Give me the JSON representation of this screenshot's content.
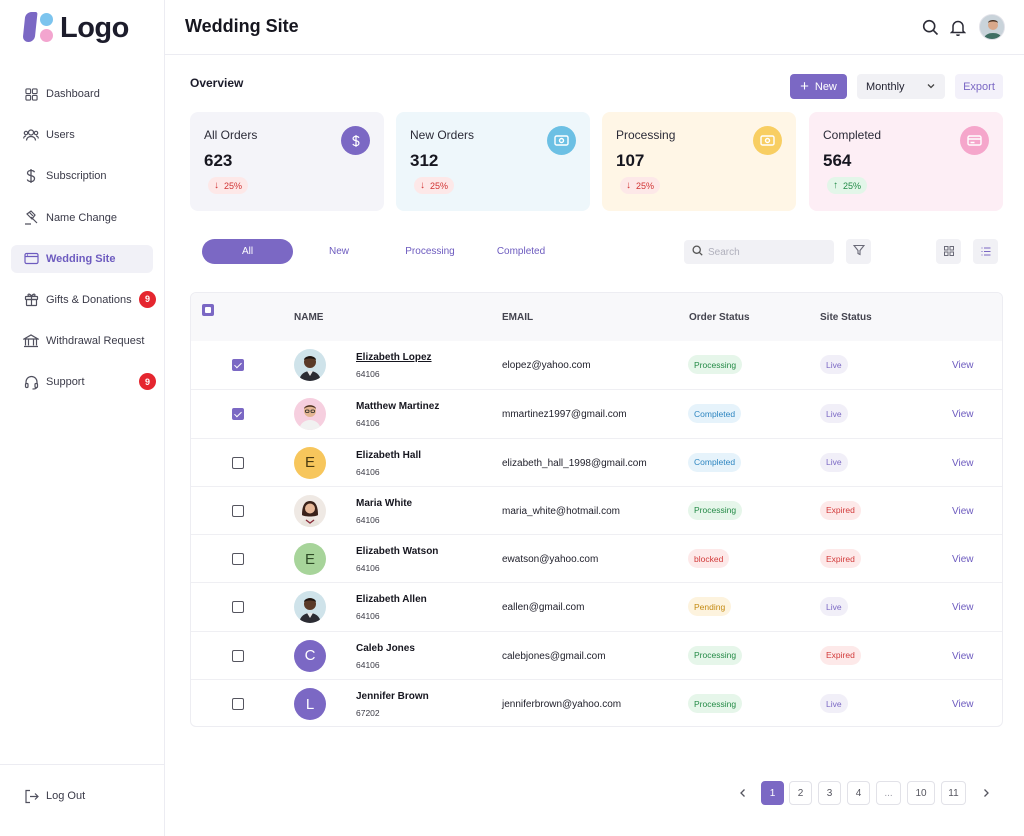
{
  "logo": {
    "text": "Logo"
  },
  "sidebar": {
    "items": [
      {
        "label": "Dashboard",
        "icon": "grid-icon"
      },
      {
        "label": "Users",
        "icon": "users-icon"
      },
      {
        "label": "Subscription",
        "icon": "dollar-icon"
      },
      {
        "label": "Name Change",
        "icon": "gavel-icon"
      },
      {
        "label": "Wedding Site",
        "icon": "browser-icon",
        "active": true
      },
      {
        "label": "Gifts & Donations",
        "icon": "gift-icon",
        "badge": "9"
      },
      {
        "label": "Withdrawal Request",
        "icon": "bank-icon"
      },
      {
        "label": "Support",
        "icon": "headset-icon",
        "badge": "9"
      }
    ],
    "logout_label": "Log Out"
  },
  "header": {
    "title": "Wedding Site"
  },
  "overview": {
    "title": "Overview",
    "new_label": "New",
    "period": "Monthly",
    "export_label": "Export"
  },
  "cards": [
    {
      "title": "All Orders",
      "value": "623",
      "change": "25%",
      "direction": "down",
      "bg": "#f4f4f9",
      "icon_bg": "#7b68c4"
    },
    {
      "title": "New Orders",
      "value": "312",
      "change": "25%",
      "direction": "down",
      "bg": "#eef7fb",
      "icon_bg": "#6cc0e4"
    },
    {
      "title": "Processing",
      "value": "107",
      "change": "25%",
      "direction": "down",
      "bg": "#fff6e6",
      "icon_bg": "#f8ce62"
    },
    {
      "title": "Completed",
      "value": "564",
      "change": "25%",
      "direction": "up",
      "bg": "#fdeef5",
      "icon_bg": "#f5a6cb"
    }
  ],
  "tabs": [
    {
      "label": "All",
      "active": true
    },
    {
      "label": "New"
    },
    {
      "label": "Processing"
    },
    {
      "label": "Completed"
    }
  ],
  "search": {
    "placeholder": "Search"
  },
  "table": {
    "columns": {
      "name": "NAME",
      "email": "EMAIL",
      "order_status": "Order Status",
      "site_status": "Site Status"
    },
    "rows": [
      {
        "name": "Elizabeth Lopez",
        "id": "64106",
        "email": "elopez@yahoo.com",
        "order_status": "Processing",
        "site_status": "Live",
        "checked": true,
        "avatar": "photo-man",
        "underline": true,
        "action": "View"
      },
      {
        "name": "Matthew Martinez",
        "id": "64106",
        "email": "mmartinez1997@gmail.com",
        "order_status": "Completed",
        "site_status": "Live",
        "checked": true,
        "avatar": "photo-glasses",
        "action": "View"
      },
      {
        "name": "Elizabeth Hall",
        "id": "64106",
        "email": "elizabeth_hall_1998@gmail.com",
        "order_status": "Completed",
        "site_status": "Live",
        "checked": false,
        "avatar": "E",
        "avatar_bg": "#f7c65c",
        "avatar_fg": "#4a3a10",
        "action": "View"
      },
      {
        "name": "Maria White",
        "id": "64106",
        "email": "maria_white@hotmail.com",
        "order_status": "Processing",
        "site_status": "Expired",
        "checked": false,
        "avatar": "photo-woman",
        "action": "View"
      },
      {
        "name": "Elizabeth Watson",
        "id": "64106",
        "email": "ewatson@yahoo.com",
        "order_status": "blocked",
        "site_status": "Expired",
        "checked": false,
        "avatar": "E",
        "avatar_bg": "#a7d49a",
        "avatar_fg": "#2d4a25",
        "action": "View"
      },
      {
        "name": "Elizabeth Allen",
        "id": "64106",
        "email": "eallen@gmail.com",
        "order_status": "Pending",
        "site_status": "Live",
        "checked": false,
        "avatar": "photo-man",
        "action": "View"
      },
      {
        "name": "Caleb Jones",
        "id": "64106",
        "email": "calebjones@gmail.com",
        "order_status": "Processing",
        "site_status": "Expired",
        "checked": false,
        "avatar": "C",
        "avatar_bg": "#7b68c4",
        "avatar_fg": "#ffffff",
        "action": "View"
      },
      {
        "name": "Jennifer Brown",
        "id": "67202",
        "email": "jenniferbrown@yahoo.com",
        "order_status": "Processing",
        "site_status": "Live",
        "checked": false,
        "avatar": "L",
        "avatar_bg": "#7b68c4",
        "avatar_fg": "#ffffff",
        "action": "View"
      }
    ]
  },
  "status_colors": {
    "Processing": {
      "bg": "#e6f6ea",
      "fg": "#248a46"
    },
    "Completed": {
      "bg": "#e6f3fb",
      "fg": "#2e86c1"
    },
    "blocked": {
      "bg": "#fde9e9",
      "fg": "#d23a3a"
    },
    "Pending": {
      "bg": "#fdf3de",
      "fg": "#c48a12"
    },
    "Live": {
      "bg": "#f1eff8",
      "fg": "#7b68c4"
    },
    "Expired": {
      "bg": "#fde9e9",
      "fg": "#d23a3a"
    }
  },
  "pagination": {
    "pages": [
      "1",
      "2",
      "3",
      "4",
      "...",
      "10",
      "11"
    ],
    "active": "1"
  }
}
